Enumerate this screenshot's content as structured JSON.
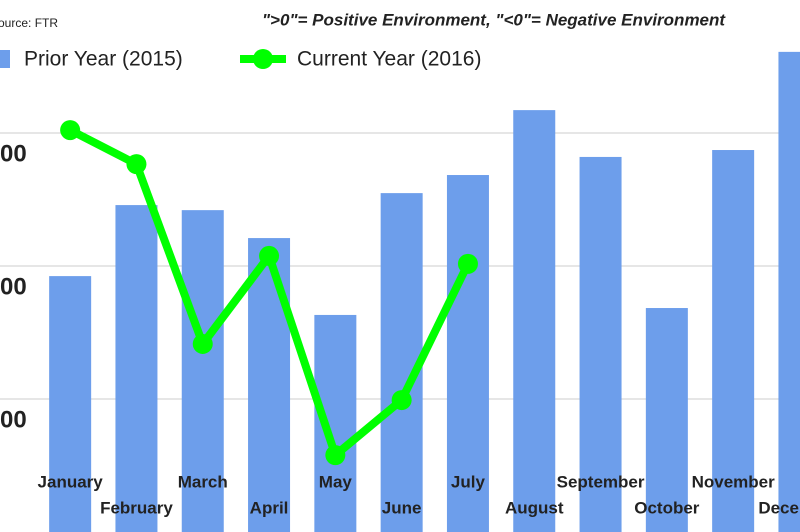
{
  "chart_data": {
    "type": "bar-line",
    "source": "Source: FTR",
    "subtitle": "\">0\"= Positive Environment, \"<0\"= Negative Environment",
    "categories": [
      "January",
      "February",
      "March",
      "April",
      "May",
      "June",
      "July",
      "August",
      "September",
      "October",
      "November",
      "December"
    ],
    "series": [
      {
        "name": "Prior Year (2015)",
        "type": "bar",
        "color": "#6d9eeb",
        "values": [
          9.62,
          12.29,
          12.1,
          11.05,
          8.16,
          12.74,
          13.42,
          15.86,
          14.1,
          8.42,
          14.36,
          18.05
        ]
      },
      {
        "name": "Current Year (2016)",
        "type": "line",
        "color": "#00ff00",
        "values": [
          15.11,
          13.83,
          7.07,
          10.38,
          2.89,
          4.96,
          10.08,
          null,
          null,
          null,
          null,
          null
        ]
      }
    ],
    "ylim": [
      0,
      20
    ],
    "yticks": [
      {
        "value": 5,
        "label": "00"
      },
      {
        "value": 10,
        "label": "00"
      },
      {
        "value": 15,
        "label": "00"
      }
    ],
    "grid": true
  }
}
